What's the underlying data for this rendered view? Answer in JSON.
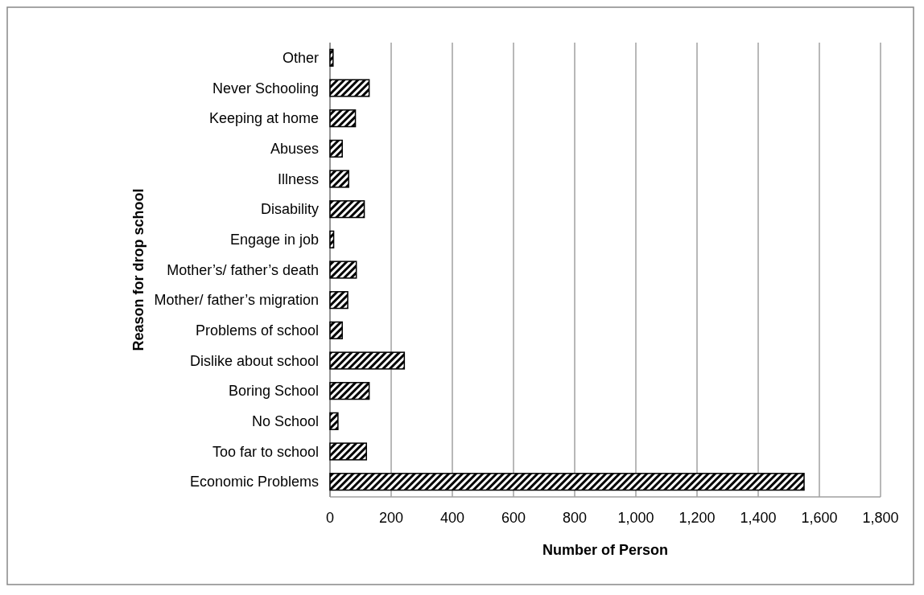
{
  "chart_data": {
    "type": "bar",
    "orientation": "horizontal",
    "xlabel": "Number of Person",
    "ylabel": "Reason for drop school",
    "categories": [
      "Other",
      "Never Schooling",
      "Keeping at home",
      "Abuses",
      "Illness",
      "Disability",
      "Engage in job",
      "Mother’s/ father’s death",
      "Mother/ father’s migration",
      "Problems of school",
      "Dislike about school",
      "Boring School",
      "No School",
      "Too far to school",
      "Economic Problems"
    ],
    "values": [
      10,
      128,
      83,
      40,
      61,
      112,
      12,
      86,
      58,
      40,
      243,
      128,
      26,
      119,
      1550
    ],
    "color": "#000000",
    "xlim": [
      0,
      1800
    ],
    "xticks": [
      0,
      200,
      400,
      600,
      {
        "value": 800,
        "label": "800"
      },
      {
        "value": 1000,
        "label": "1,000"
      },
      {
        "value": 1200,
        "label": "1,200"
      },
      {
        "value": 1400,
        "label": "1,400"
      },
      {
        "value": 1600,
        "label": "1,600"
      },
      {
        "value": 1800,
        "label": "1,800"
      }
    ],
    "grid": "x"
  }
}
